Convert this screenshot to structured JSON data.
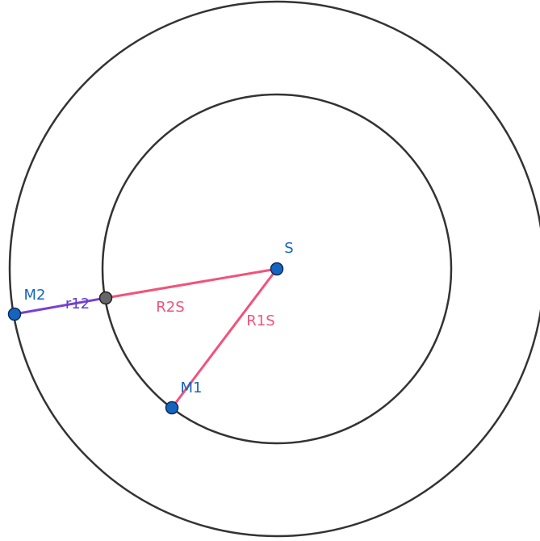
{
  "points": [
    {
      "label": "S"
    },
    {
      "label": "M1"
    },
    {
      "label": "M2"
    }
  ],
  "segments": [
    {
      "label": "R1S"
    },
    {
      "label": "R2S"
    },
    {
      "label": "r12"
    }
  ]
}
